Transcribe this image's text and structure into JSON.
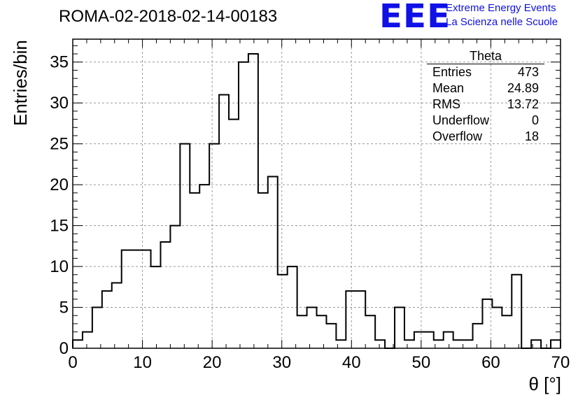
{
  "header": {
    "title": "ROMA-02-2018-02-14-00183",
    "logo": "EEE",
    "logo_line1": "Extreme Energy Events",
    "logo_line2": "La Scienza nelle Scuole"
  },
  "stats_box": {
    "title": "Theta",
    "rows": [
      {
        "label": "Entries",
        "value": "473"
      },
      {
        "label": "Mean",
        "value": "24.89"
      },
      {
        "label": "RMS",
        "value": "13.72"
      },
      {
        "label": "Underflow",
        "value": "0"
      },
      {
        "label": "Overflow",
        "value": "18"
      }
    ]
  },
  "chart_data": {
    "type": "bar",
    "histogram": true,
    "xlabel": "θ [°]",
    "ylabel": "Entries/bin",
    "xlim": [
      0,
      70
    ],
    "ylim": [
      0,
      37.8
    ],
    "x_ticks": [
      0,
      10,
      20,
      30,
      40,
      50,
      60,
      70
    ],
    "y_ticks": [
      0,
      5,
      10,
      15,
      20,
      25,
      30,
      35
    ],
    "grid": true,
    "bin_width": 1.4,
    "values": [
      1,
      2,
      5,
      7,
      8,
      12,
      12,
      12,
      10,
      13,
      15,
      25,
      19,
      20,
      25,
      31,
      28,
      35,
      36,
      19,
      21,
      9,
      10,
      4,
      5,
      4,
      3,
      1,
      7,
      7,
      4,
      1,
      0,
      5,
      1,
      2,
      2,
      1,
      2,
      1,
      1,
      3,
      6,
      5,
      4,
      9,
      0,
      1,
      0,
      1
    ]
  }
}
